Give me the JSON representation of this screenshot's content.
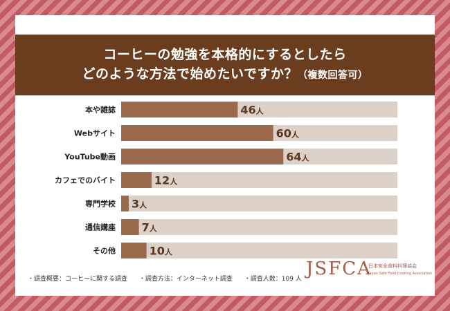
{
  "title": {
    "line1": "コーヒーの勉強を本格的にするとしたら",
    "line2": "どのような方法で始めたいですか？",
    "note": "（複数回答可）"
  },
  "chart_data": {
    "type": "bar",
    "orientation": "horizontal",
    "unit": "人",
    "total": 109,
    "categories": [
      "本や雑誌",
      "Webサイト",
      "YouTube動画",
      "カフェでのバイト",
      "専門学校",
      "通信講座",
      "その他"
    ],
    "values": [
      46,
      60,
      64,
      12,
      3,
      7,
      10
    ],
    "colors": {
      "bar": "#9b6a4c",
      "track": "#ddd0c7",
      "label": "#5a3820"
    }
  },
  "footer": {
    "survey_overview": "・調査概要：コーヒーに関する調査",
    "survey_method": "・調査方法：インターネット調査",
    "respondents": "・調査人数：109 人"
  },
  "logo": {
    "main": "JSFCA",
    "jp": "日本安全食料料理協会",
    "en": "Japan Safe Food Cooking Association"
  }
}
